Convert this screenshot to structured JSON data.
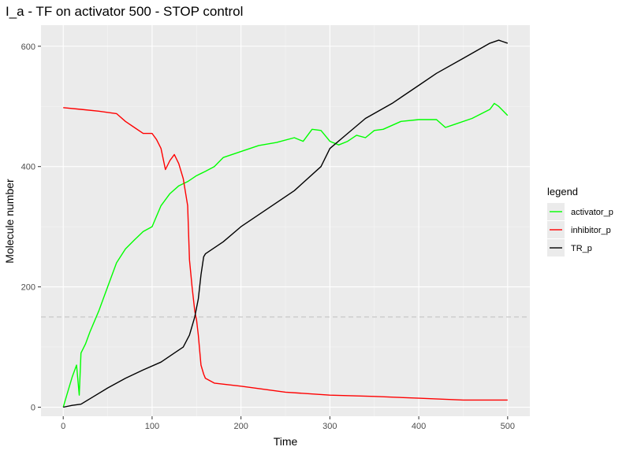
{
  "chart_data": {
    "type": "line",
    "title": "I_a - TF on activator 500 - STOP control",
    "xlabel": "Time",
    "ylabel": "Molecule number",
    "xlim": [
      -25,
      525
    ],
    "ylim": [
      -15,
      635
    ],
    "x_ticks": [
      0,
      100,
      200,
      300,
      400,
      500
    ],
    "y_ticks": [
      0,
      200,
      400,
      600
    ],
    "grid": true,
    "legend": {
      "title": "legend",
      "placement": "right"
    },
    "reference_line": {
      "y": 150,
      "style": "dashed",
      "color": "#c8c8c8"
    },
    "series": [
      {
        "name": "activator_p",
        "color": "#00ff00",
        "x": [
          0,
          5,
          10,
          15,
          18,
          20,
          25,
          30,
          40,
          50,
          60,
          70,
          80,
          90,
          100,
          110,
          120,
          130,
          140,
          150,
          160,
          170,
          180,
          200,
          220,
          240,
          260,
          270,
          280,
          290,
          300,
          310,
          320,
          330,
          340,
          350,
          360,
          380,
          400,
          420,
          430,
          440,
          460,
          480,
          485,
          490,
          500
        ],
        "y": [
          0,
          25,
          50,
          70,
          20,
          90,
          105,
          125,
          160,
          200,
          240,
          263,
          278,
          292,
          300,
          335,
          355,
          368,
          375,
          385,
          392,
          400,
          415,
          425,
          435,
          440,
          448,
          442,
          462,
          460,
          442,
          436,
          442,
          452,
          448,
          460,
          462,
          475,
          478,
          478,
          465,
          470,
          480,
          495,
          505,
          500,
          485
        ]
      },
      {
        "name": "inhibitor_p",
        "color": "#ff0000",
        "x": [
          0,
          20,
          40,
          60,
          70,
          80,
          90,
          100,
          105,
          110,
          115,
          120,
          125,
          130,
          135,
          140,
          142,
          145,
          148,
          150,
          152,
          155,
          158,
          160,
          170,
          200,
          250,
          300,
          350,
          400,
          450,
          500
        ],
        "y": [
          498,
          495,
          492,
          488,
          475,
          465,
          455,
          455,
          445,
          430,
          395,
          410,
          420,
          405,
          380,
          335,
          245,
          200,
          160,
          145,
          120,
          70,
          55,
          48,
          40,
          35,
          25,
          20,
          18,
          15,
          12,
          12
        ]
      },
      {
        "name": "TR_p",
        "color": "#000000",
        "x": [
          0,
          10,
          20,
          30,
          50,
          70,
          90,
          110,
          125,
          135,
          142,
          148,
          152,
          155,
          158,
          160,
          170,
          180,
          200,
          230,
          260,
          290,
          300,
          320,
          340,
          370,
          400,
          420,
          450,
          480,
          490,
          500
        ],
        "y": [
          0,
          3,
          5,
          14,
          32,
          48,
          62,
          75,
          90,
          100,
          120,
          150,
          180,
          220,
          250,
          255,
          265,
          275,
          300,
          330,
          360,
          400,
          430,
          455,
          480,
          505,
          535,
          555,
          580,
          605,
          610,
          605
        ]
      }
    ]
  }
}
